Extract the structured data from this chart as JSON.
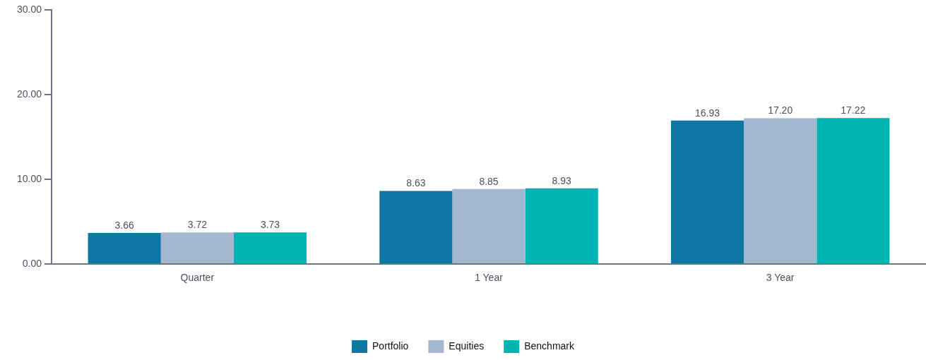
{
  "chart_data": {
    "type": "bar",
    "categories": [
      "Quarter",
      "1 Year",
      "3 Year"
    ],
    "series": [
      {
        "name": "Portfolio",
        "color": "#0e77a5",
        "values": [
          3.66,
          8.63,
          16.93
        ],
        "value_labels": [
          "3.66",
          "8.63",
          "16.93"
        ]
      },
      {
        "name": "Equities",
        "color": "#a3b8d0",
        "values": [
          3.72,
          8.85,
          17.2
        ],
        "value_labels": [
          "3.72",
          "8.85",
          "17.20"
        ]
      },
      {
        "name": "Benchmark",
        "color": "#00b5b1",
        "values": [
          3.73,
          8.93,
          17.22
        ],
        "value_labels": [
          "3.73",
          "8.93",
          "17.22"
        ]
      }
    ],
    "ylim": [
      0,
      30
    ],
    "yticks": [
      {
        "value": 0,
        "label": "0.00"
      },
      {
        "value": 10,
        "label": "10.00"
      },
      {
        "value": 20,
        "label": "20.00"
      },
      {
        "value": 30,
        "label": "30.00"
      }
    ],
    "grid": false,
    "legend": "bottom"
  }
}
